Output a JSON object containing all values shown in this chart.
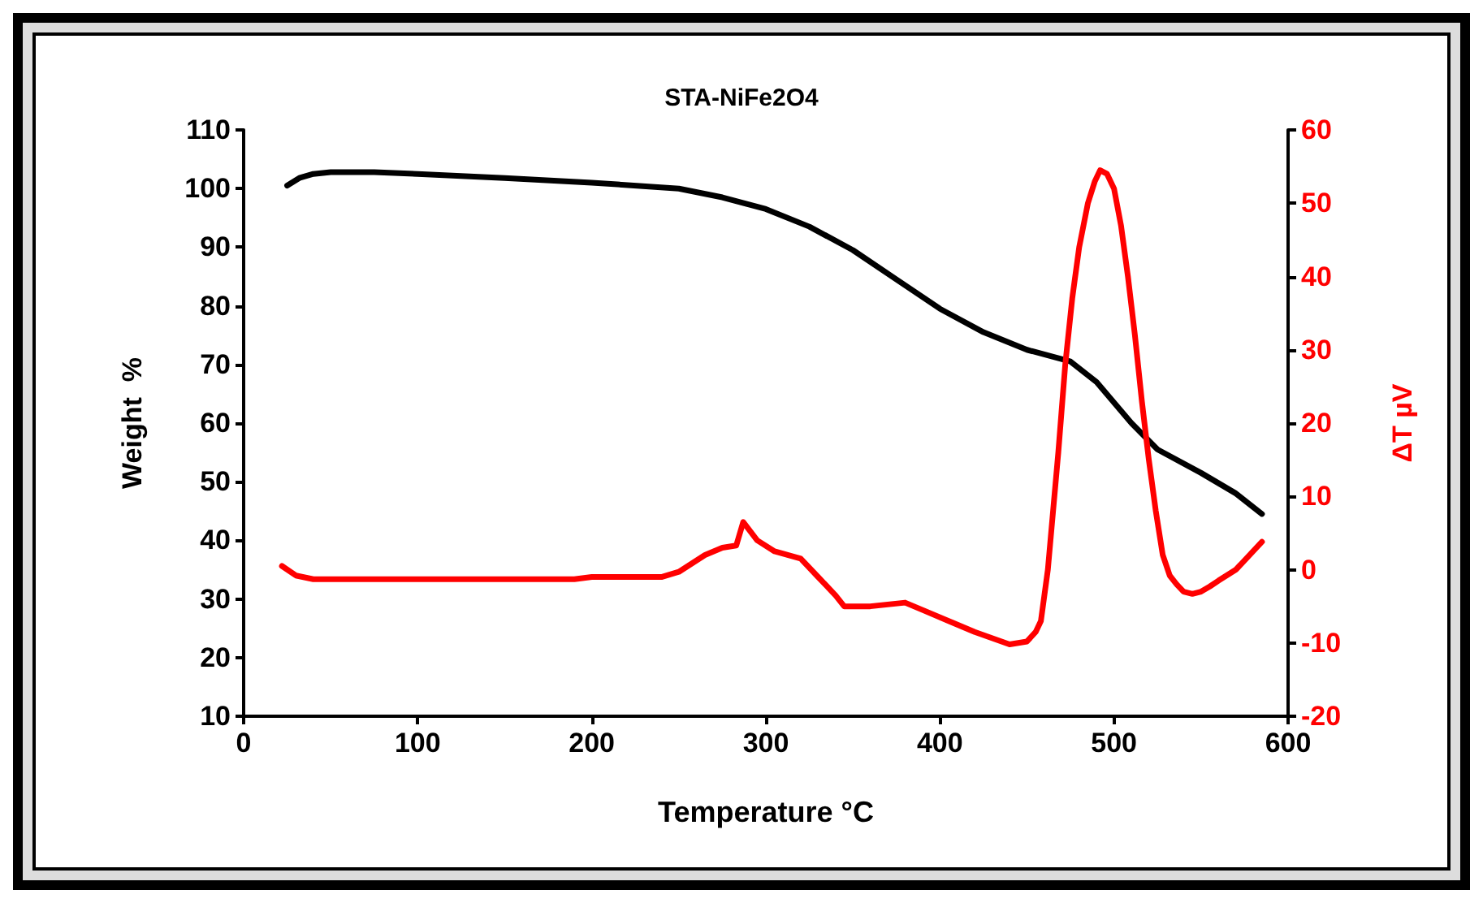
{
  "chart_data": {
    "type": "line",
    "title": "STA-NiFe2O4",
    "xlabel": "Temperature °C",
    "ylabel": "Weight  %",
    "y2label": "ΔT µV",
    "xlim": [
      0,
      600
    ],
    "xticks": [
      0,
      100,
      200,
      300,
      400,
      500,
      600
    ],
    "ylim": [
      10,
      110
    ],
    "yticks": [
      10,
      20,
      30,
      40,
      50,
      60,
      70,
      80,
      90,
      100,
      110
    ],
    "y2lim": [
      -20,
      60
    ],
    "y2ticks": [
      -20,
      -10,
      0,
      10,
      20,
      30,
      40,
      50,
      60
    ],
    "grid": false,
    "marker": "none",
    "line_style": "solid",
    "series": [
      {
        "color": "#000000",
        "x": [
          25,
          32,
          40,
          50,
          75,
          100,
          150,
          200,
          250,
          275,
          300,
          325,
          350,
          375,
          400,
          425,
          450,
          475,
          490,
          500,
          510,
          525,
          550,
          570,
          585
        ],
        "values": [
          100.5,
          101.8,
          102.5,
          102.8,
          102.8,
          102.5,
          101.8,
          101,
          100,
          98.5,
          96.5,
          93.5,
          89.5,
          84.5,
          79.5,
          75.5,
          72.5,
          70.5,
          67,
          63.5,
          60,
          55.5,
          51.5,
          48,
          44.5
        ]
      },
      {
        "color": "#ff0000",
        "axis": "y2",
        "x": [
          22,
          30,
          40,
          100,
          190,
          200,
          240,
          250,
          265,
          275,
          283,
          287,
          295,
          305,
          320,
          330,
          340,
          345,
          360,
          380,
          390,
          405,
          420,
          440,
          450,
          455,
          458,
          462,
          465,
          468,
          472,
          476,
          480,
          485,
          489,
          492,
          496,
          500,
          504,
          508,
          512,
          516,
          520,
          524,
          528,
          532,
          536,
          540,
          545,
          550,
          555,
          560,
          570,
          585
        ],
        "values": [
          0.5,
          -0.8,
          -1.3,
          -1.3,
          -1.3,
          -1,
          -1,
          -0.3,
          2,
          3,
          3.3,
          6.5,
          4,
          2.5,
          1.5,
          -1,
          -3.5,
          -5,
          -5,
          -4.5,
          -5.5,
          -7,
          -8.5,
          -10.2,
          -9.8,
          -8.5,
          -7,
          0,
          8,
          16,
          28,
          37,
          44,
          50,
          53,
          54.5,
          54,
          52,
          47,
          40,
          32,
          23,
          15,
          8,
          2,
          -0.8,
          -2,
          -3,
          -3.3,
          -3,
          -2.3,
          -1.5,
          0,
          3.8
        ]
      }
    ]
  }
}
